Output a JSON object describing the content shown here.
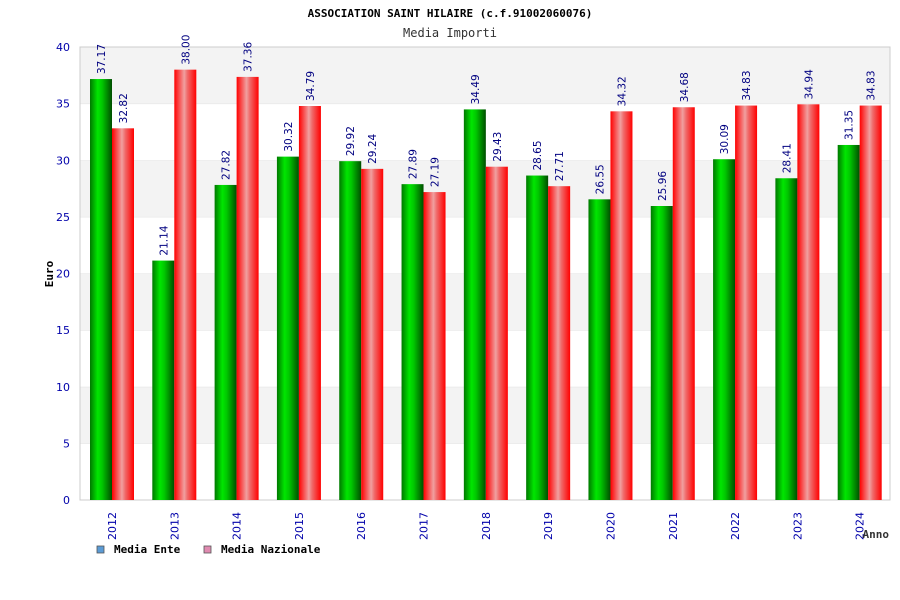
{
  "chart_data": {
    "type": "bar",
    "title": "ASSOCIATION SAINT HILAIRE (c.f.91002060076)",
    "subtitle": "Media Importi",
    "xlabel": "Anno",
    "ylabel": "Euro",
    "ylim": [
      0,
      40
    ],
    "yticks": [
      "0",
      "5",
      "10",
      "15",
      "20",
      "25",
      "30",
      "35",
      "40"
    ],
    "categories": [
      "2012",
      "2013",
      "2014",
      "2015",
      "2016",
      "2017",
      "2018",
      "2019",
      "2020",
      "2021",
      "2022",
      "2023",
      "2024"
    ],
    "series": [
      {
        "name": "Media Ente",
        "color": "#00b400",
        "values": [
          37.17,
          21.14,
          27.82,
          30.32,
          29.92,
          27.89,
          34.49,
          28.65,
          26.55,
          25.96,
          30.09,
          28.41,
          31.35
        ],
        "labels": [
          "37.17",
          "21.14",
          "27.82",
          "30.32",
          "29.92",
          "27.89",
          "34.49",
          "28.65",
          "26.55",
          "25.96",
          "30.09",
          "28.41",
          "31.35"
        ]
      },
      {
        "name": "Media Nazionale",
        "color": "#ff0000",
        "values": [
          32.82,
          38.0,
          37.36,
          34.79,
          29.24,
          27.19,
          29.43,
          27.71,
          34.32,
          34.68,
          34.83,
          34.94,
          34.83
        ],
        "labels": [
          "32.82",
          "38.00",
          "37.36",
          "34.79",
          "29.24",
          "27.19",
          "29.43",
          "27.71",
          "34.32",
          "34.68",
          "34.83",
          "34.94",
          "34.83"
        ]
      }
    ],
    "legend": {
      "placement": "bottom-left",
      "items": [
        {
          "label": "Media Ente",
          "color": "#5b9bd5"
        },
        {
          "label": "Media Nazionale",
          "color": "#e08ab0"
        }
      ]
    },
    "grid": true,
    "colors": {
      "axis_text": "#0000aa",
      "label_text": "#000080",
      "band": "#f3f3f3"
    }
  }
}
